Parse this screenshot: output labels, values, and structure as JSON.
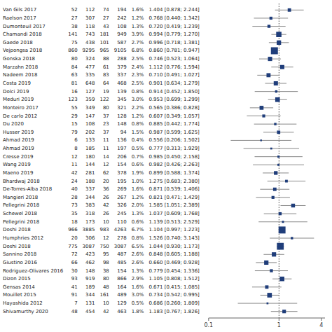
{
  "chart_data": {
    "type": "forest",
    "log": "x",
    "xlim": [
      0.1,
      4.5
    ],
    "xticks": [
      0.1,
      1,
      4
    ],
    "ref_line": 1,
    "color": "#1f3d7a",
    "categories": [
      "Van Gils 2017",
      "Raelson 2017",
      "Dumonteuil 2017",
      "Chamandi 2018",
      "Gaede 2018",
      "Vejpongsa 2018",
      "Gonska 2018",
      "Marzahn 2018",
      "Nadeem 2018",
      "Costa 2019",
      "Dolci 2019",
      "Meduri 2019",
      "Monteiro 2017",
      "De carlo 2012",
      "Du 2020",
      "Husser 2019",
      "Ahmad 2019",
      "Ahmad 2019",
      "Cresse 2019",
      "Wang 2019",
      "Maeno 2019",
      "Bhardwaj 2018",
      "De-Torres-Alba 2018",
      "Mangieri 2018",
      "Pellegrini 2018",
      "Schewel 2018",
      "Pellegrini 2018",
      "Doshi 2018",
      "Humphries 2012",
      "Doshi 2018",
      "Sannino 2018",
      "Giustino 2016",
      "Rodriguez-Olivares 2016",
      "Dizon 2015",
      "Gensas 2014",
      "Mouillet 2015",
      "Hayashida 2012",
      "Shivamurthy 2020"
    ],
    "values": [
      1.404,
      0.768,
      0.72,
      0.994,
      0.996,
      0.86,
      0.746,
      1.112,
      0.71,
      0.901,
      0.914,
      0.953,
      0.565,
      0.607,
      0.885,
      0.987,
      0.556,
      0.777,
      0.985,
      0.982,
      0.899,
      1.275,
      0.871,
      0.821,
      1.585,
      1.037,
      1.139,
      1.104,
      1.526,
      1.044,
      0.848,
      0.66,
      0.779,
      1.105,
      0.671,
      0.734,
      0.686,
      1.183
    ],
    "ci_lo": [
      0.878,
      0.44,
      0.419,
      0.779,
      0.718,
      0.781,
      0.523,
      0.776,
      0.491,
      0.634,
      0.452,
      0.699,
      0.386,
      0.349,
      0.442,
      0.599,
      0.206,
      0.313,
      0.45,
      0.426,
      0.588,
      0.683,
      0.539,
      0.471,
      1.051,
      0.609,
      0.513,
      0.997,
      0.74,
      0.93,
      0.605,
      0.469,
      0.454,
      0.808,
      0.415,
      0.542,
      0.26,
      0.767
    ],
    "ci_hi": [
      2.244,
      1.342,
      1.239,
      1.27,
      1.381,
      0.947,
      1.064,
      1.594,
      1.027,
      1.279,
      1.85,
      1.299,
      0.828,
      1.057,
      1.774,
      1.625,
      1.502,
      1.929,
      2.158,
      2.263,
      1.374,
      2.38,
      1.406,
      1.429,
      2.389,
      1.768,
      2.529,
      1.223,
      3.143,
      1.173,
      1.188,
      0.928,
      1.336,
      1.512,
      1.085,
      0.995,
      1.809,
      1.826
    ],
    "weights": [
      1.6,
      1.2,
      1.3,
      3.9,
      2.7,
      6.8,
      2.5,
      2.4,
      2.3,
      2.5,
      0.8,
      3.0,
      2.2,
      1.2,
      0.8,
      1.5,
      0.4,
      0.5,
      0.7,
      0.6,
      1.9,
      1.0,
      1.6,
      1.2,
      2.0,
      1.3,
      0.6,
      6.7,
      0.8,
      6.5,
      2.6,
      2.6,
      1.3,
      2.9,
      1.6,
      3.0,
      0.5,
      1.8
    ],
    "weight_labels": [
      "1.6%",
      "1.2%",
      "1.3%",
      "3.9%",
      "2.7%",
      "6.8%",
      "2.5%",
      "2.4%",
      "2.3%",
      "2.5%",
      "0.8%",
      "3.0%",
      "2.2%",
      "1.2%",
      "0.8%",
      "1.5%",
      "0.4%",
      "0.5%",
      "0.7%",
      "0.6%",
      "1.9%",
      "1.0%",
      "1.6%",
      "1.2%",
      "2.0%",
      "1.3%",
      "0.6%",
      "6.7%",
      "0.8%",
      "6.5%",
      "2.6%",
      "2.6%",
      "1.3%",
      "2.9%",
      "1.6%",
      "3.0%",
      "0.5%",
      "1.8%"
    ],
    "ci_labels": [
      "1.404 [0.878; 2.244]",
      "0.768 [0.440; 1.342]",
      "0.720 [0.419; 1.239]",
      "0.994 [0.779; 1.270]",
      "0.996 [0.718; 1.381]",
      "0.860 [0.781; 0.947]",
      "0.746 [0.523; 1.064]",
      "1.112 [0.776; 1.594]",
      "0.710 [0.491; 1.027]",
      "0.901 [0.634; 1.279]",
      "0.914 [0.452; 1.850]",
      "0.953 [0.699; 1.299]",
      "0.565 [0.386; 0.828]",
      "0.607 [0.349; 1.057]",
      "0.885 [0.442; 1.774]",
      "0.987 [0.599; 1.625]",
      "0.556 [0.206; 1.502]",
      "0.777 [0.313; 1.929]",
      "0.985 [0.450; 2.158]",
      "0.982 [0.426; 2.263]",
      "0.899 [0.588; 1.374]",
      "1.275 [0.683; 2.380]",
      "0.871 [0.539; 1.406]",
      "0.821 [0.471; 1.429]",
      "1.585 [1.051; 2.389]",
      "1.037 [0.609; 1.768]",
      "1.139 [0.513; 2.529]",
      "1.104 [0.997; 1.223]",
      "1.526 [0.740; 3.143]",
      "1.044 [0.930; 1.173]",
      "0.848 [0.605; 1.188]",
      "0.660 [0.469; 0.928]",
      "0.779 [0.454; 1.336]",
      "1.105 [0.808; 1.512]",
      "0.671 [0.415; 1.085]",
      "0.734 [0.542; 0.995]",
      "0.686 [0.260; 1.809]",
      "1.183 [0.767; 1.826]"
    ],
    "e1": [
      52,
      27,
      38,
      141,
      75,
      860,
      80,
      84,
      63,
      81,
      16,
      123,
      55,
      29,
      15,
      79,
      6,
      8,
      12,
      11,
      42,
      24,
      40,
      28,
      73,
      35,
      18,
      966,
      20,
      775,
      72,
      66,
      30,
      93,
      41,
      91,
      7,
      48
    ],
    "n1": [
      112,
      307,
      118,
      743,
      438,
      9295,
      324,
      477,
      335,
      648,
      127,
      359,
      349,
      147,
      108,
      202,
      133,
      185,
      180,
      144,
      281,
      188,
      337,
      344,
      383,
      318,
      173,
      3885,
      306,
      3087,
      423,
      462,
      148,
      919,
      189,
      344,
      131,
      454
    ],
    "e2": [
      74,
      27,
      43,
      181,
      101,
      965,
      88,
      61,
      83,
      64,
      19,
      122,
      80,
      37,
      23,
      37,
      11,
      11,
      14,
      12,
      62,
      20,
      36,
      26,
      42,
      26,
      10,
      983,
      12,
      750,
      95,
      98,
      38,
      80,
      48,
      161,
      10,
      42
    ],
    "n2": [
      194,
      242,
      108,
      949,
      587,
      9105,
      288,
      379,
      337,
      468,
      139,
      345,
      321,
      128,
      148,
      94,
      136,
      197,
      206,
      154,
      378,
      195,
      269,
      267,
      326,
      245,
      110,
      4263,
      278,
      3087,
      487,
      485,
      154,
      866,
      164,
      489,
      129,
      463
    ]
  }
}
